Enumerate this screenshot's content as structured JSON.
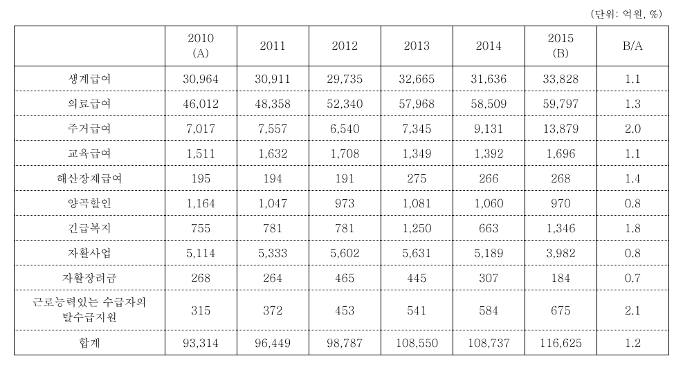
{
  "unit_label": "(단위: 억원, %)",
  "table": {
    "headers": {
      "label": "",
      "year2010": "2010\n(A)",
      "year2011": "2011",
      "year2012": "2012",
      "year2013": "2013",
      "year2014": "2014",
      "year2015": "2015\n(B)",
      "ratio": "B/A"
    },
    "rows": [
      {
        "label": "생계급여",
        "year2010": "30,964",
        "year2011": "30,911",
        "year2012": "29,735",
        "year2013": "32,665",
        "year2014": "31,636",
        "year2015": "33,828",
        "ratio": "1.1"
      },
      {
        "label": "의료급여",
        "year2010": "46,012",
        "year2011": "48,358",
        "year2012": "52,340",
        "year2013": "57,968",
        "year2014": "58,509",
        "year2015": "59,797",
        "ratio": "1.3"
      },
      {
        "label": "주거급여",
        "year2010": "7,017",
        "year2011": "7,557",
        "year2012": "6,540",
        "year2013": "7,345",
        "year2014": "9,131",
        "year2015": "13,879",
        "ratio": "2.0"
      },
      {
        "label": "교육급여",
        "year2010": "1,511",
        "year2011": "1,632",
        "year2012": "1,708",
        "year2013": "1,349",
        "year2014": "1,392",
        "year2015": "1,696",
        "ratio": "1.1"
      },
      {
        "label": "해산장제급여",
        "year2010": "195",
        "year2011": "194",
        "year2012": "191",
        "year2013": "275",
        "year2014": "266",
        "year2015": "268",
        "ratio": "1.4"
      },
      {
        "label": "양곡할인",
        "year2010": "1,164",
        "year2011": "1,047",
        "year2012": "973",
        "year2013": "1,081",
        "year2014": "1,060",
        "year2015": "970",
        "ratio": "0.8"
      },
      {
        "label": "긴급복지",
        "year2010": "755",
        "year2011": "781",
        "year2012": "781",
        "year2013": "1,250",
        "year2014": "663",
        "year2015": "1,346",
        "ratio": "1.8"
      },
      {
        "label": "자활사업",
        "year2010": "5,114",
        "year2011": "5,333",
        "year2012": "5,602",
        "year2013": "5,631",
        "year2014": "5,189",
        "year2015": "3,982",
        "ratio": "0.8"
      },
      {
        "label": "자활장려금",
        "year2010": "268",
        "year2011": "264",
        "year2012": "465",
        "year2013": "445",
        "year2014": "307",
        "year2015": "184",
        "ratio": "0.7"
      },
      {
        "label": "근로능력있는 수급자의\n탈수급지원",
        "year2010": "315",
        "year2011": "372",
        "year2012": "453",
        "year2013": "541",
        "year2014": "584",
        "year2015": "675",
        "ratio": "2.1"
      },
      {
        "label": "합계",
        "year2010": "93,314",
        "year2011": "96,449",
        "year2012": "98,787",
        "year2013": "108,550",
        "year2014": "108,737",
        "year2015": "116,625",
        "ratio": "1.2"
      }
    ]
  },
  "styling": {
    "background_color": "#ffffff",
    "text_color": "#000000",
    "border_color": "#000000",
    "font_family": "Batang, serif",
    "header_font_size": 16,
    "cell_font_size": 16,
    "unit_font_size": 15,
    "solid_border_sections": [
      "outer",
      "header_bottom",
      "vertical"
    ],
    "dotted_border_sections": [
      "row_dividers"
    ]
  }
}
